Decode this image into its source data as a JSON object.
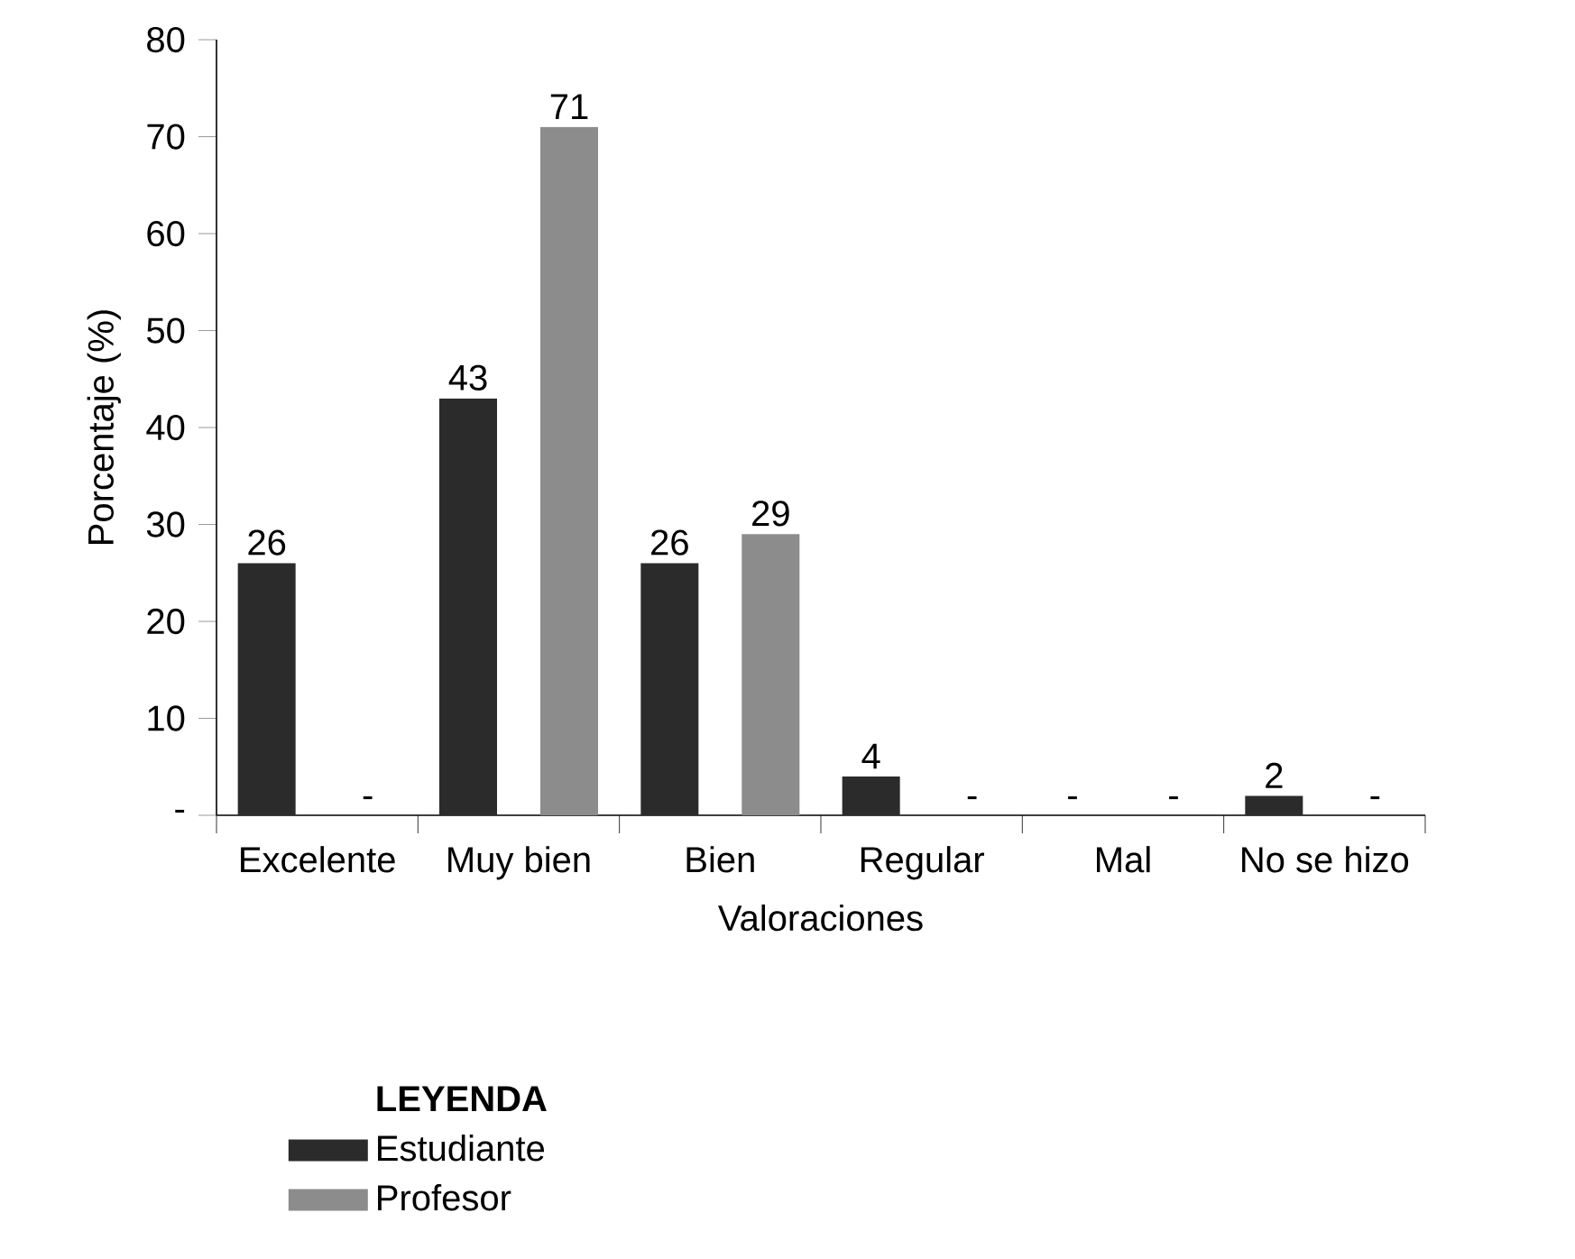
{
  "chart_data": {
    "type": "bar",
    "xlabel": "Valoraciones",
    "ylabel": "Porcentaje (%)",
    "legend_title": "LEYENDA",
    "legend": "bottom left",
    "categories": [
      "Excelente",
      "Muy bien",
      "Bien",
      "Regular",
      "Mal",
      "No se hizo"
    ],
    "series": [
      {
        "name": "Estudiante",
        "color": "#2b2b2b",
        "values": [
          26,
          43,
          26,
          4,
          null,
          2
        ],
        "value_labels": [
          "26",
          "43",
          "26",
          "4",
          "-",
          "2"
        ]
      },
      {
        "name": "Profesor",
        "color": "#8c8c8c",
        "values": [
          null,
          71,
          29,
          null,
          null,
          null
        ],
        "value_labels": [
          "-",
          "71",
          "29",
          "-",
          "-",
          "-"
        ]
      }
    ],
    "ylim": [
      0,
      80
    ],
    "yticks": [
      {
        "value": 0,
        "label": "-"
      },
      10,
      20,
      30,
      40,
      50,
      60,
      70,
      80
    ]
  }
}
